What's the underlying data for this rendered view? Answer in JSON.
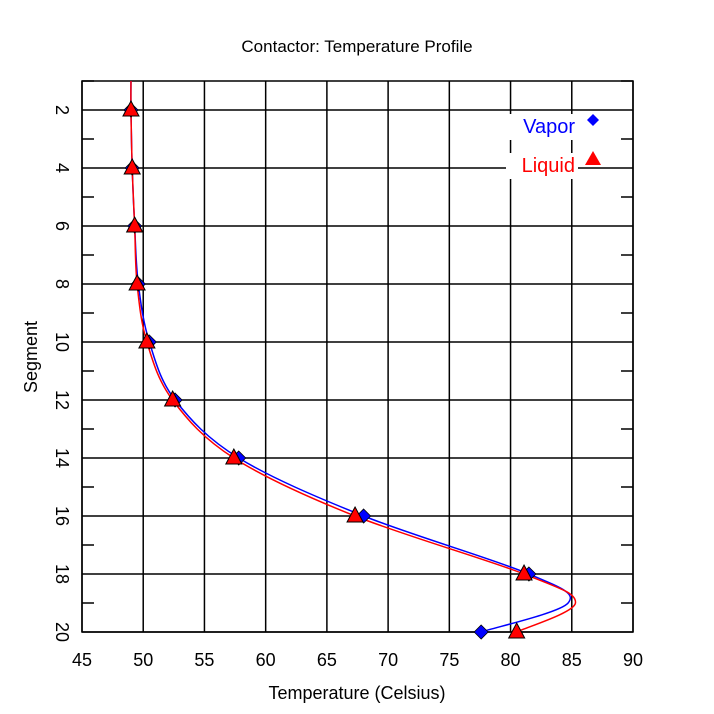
{
  "chart_data": {
    "type": "line",
    "title": "Contactor: Temperature Profile",
    "xlabel": "Temperature (Celsius)",
    "ylabel": "Segment",
    "xlim": [
      45,
      90
    ],
    "ylim": [
      1,
      20
    ],
    "y_inverted": true,
    "xticks": [
      45,
      50,
      55,
      60,
      65,
      70,
      75,
      80,
      85,
      90
    ],
    "yticks": [
      2,
      4,
      6,
      8,
      10,
      12,
      14,
      16,
      18,
      20
    ],
    "grid": true,
    "legend_position": "top-right",
    "series": [
      {
        "name": "Vapor",
        "color": "#0000ff",
        "marker": "diamond",
        "segments": [
          1,
          2,
          4,
          6,
          8,
          10,
          12,
          14,
          16,
          18,
          19,
          20
        ],
        "values": [
          49.0,
          49.0,
          49.1,
          49.3,
          49.6,
          50.5,
          52.6,
          57.8,
          68.0,
          81.5,
          84.7,
          77.6
        ],
        "marker_segments": [
          2,
          4,
          6,
          8,
          10,
          12,
          14,
          16,
          18,
          20
        ]
      },
      {
        "name": "Liquid",
        "color": "#ff0000",
        "marker": "triangle",
        "segments": [
          1,
          2,
          4,
          6,
          8,
          10,
          12,
          14,
          16,
          18,
          19,
          20
        ],
        "values": [
          49.0,
          49.0,
          49.1,
          49.3,
          49.5,
          50.3,
          52.4,
          57.4,
          67.3,
          81.1,
          85.3,
          80.5
        ],
        "marker_segments": [
          2,
          4,
          6,
          8,
          10,
          12,
          14,
          16,
          18,
          20
        ]
      }
    ]
  }
}
